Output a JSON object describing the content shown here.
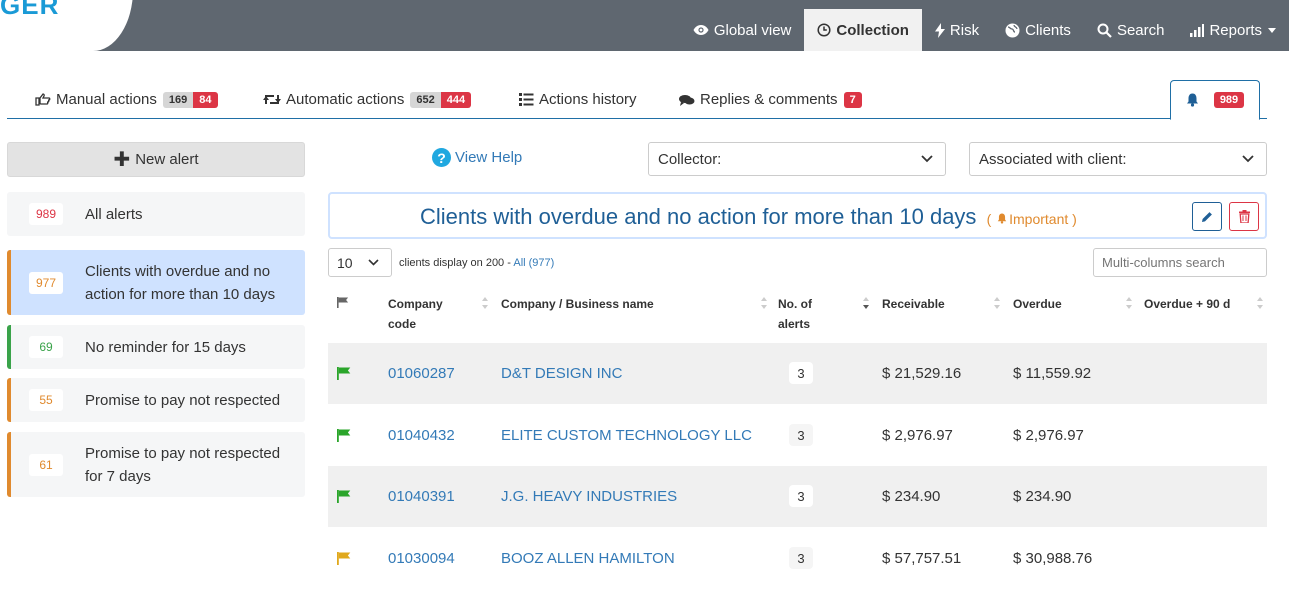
{
  "app": {
    "logo_text": "GER"
  },
  "nav": {
    "items": [
      {
        "label": "Global view",
        "icon": "eye-icon"
      },
      {
        "label": "Collection",
        "icon": "clock-icon",
        "active": true
      },
      {
        "label": "Risk",
        "icon": "bolt-icon"
      },
      {
        "label": "Clients",
        "icon": "globe-icon"
      },
      {
        "label": "Search",
        "icon": "search-icon"
      },
      {
        "label": "Reports",
        "icon": "bar-chart-icon"
      }
    ]
  },
  "tabs": {
    "manual": {
      "label": "Manual actions",
      "count_gray": "169",
      "count_red": "84"
    },
    "automatic": {
      "label": "Automatic actions",
      "count_gray": "652",
      "count_red": "444"
    },
    "history": {
      "label": "Actions history"
    },
    "replies": {
      "label": "Replies & comments",
      "count_red": "7"
    },
    "bell": {
      "count_red": "989"
    }
  },
  "sidebar": {
    "new_alert_label": "New alert",
    "items": [
      {
        "count": "989",
        "label": "All alerts",
        "count_color": "#dc3545"
      },
      {
        "count": "977",
        "label": "Clients with overdue and no action for more than 10 days",
        "count_color": "#e08a2e"
      },
      {
        "count": "69",
        "label": "No reminder for 15 days",
        "count_color": "#3aa34a"
      },
      {
        "count": "55",
        "label": "Promise to pay not respected",
        "count_color": "#e08a2e"
      },
      {
        "count": "61",
        "label": "Promise to pay not respected for 7 days",
        "count_color": "#e08a2e"
      }
    ]
  },
  "filters": {
    "help_label": "View Help",
    "collector_label": "Collector:",
    "client_label": "Associated with client:"
  },
  "alert": {
    "title": "Clients with overdue and no action for more than 10 days",
    "importance": "( Important )"
  },
  "table_controls": {
    "page_size": "10",
    "display_text": "clients display on 200 - ",
    "all_link": "All (977)",
    "search_placeholder": "Multi-columns search"
  },
  "table": {
    "columns": {
      "code": "Company code",
      "name": "Company / Business name",
      "alerts": "No. of alerts",
      "receivable": "Receivable",
      "overdue": "Overdue",
      "overdue90": "Overdue + 90 d"
    },
    "rows": [
      {
        "flag_color": "#2aa52a",
        "code": "01060287",
        "name": "D&T DESIGN INC",
        "alerts": "3",
        "receivable": "$ 21,529.16",
        "overdue": "$ 11,559.92",
        "overdue90": ""
      },
      {
        "flag_color": "#2aa52a",
        "code": "01040432",
        "name": "ELITE CUSTOM TECHNOLOGY LLC",
        "alerts": "3",
        "receivable": "$ 2,976.97",
        "overdue": "$ 2,976.97",
        "overdue90": ""
      },
      {
        "flag_color": "#2aa52a",
        "code": "01040391",
        "name": "J.G. HEAVY INDUSTRIES",
        "alerts": "3",
        "receivable": "$ 234.90",
        "overdue": "$ 234.90",
        "overdue90": ""
      },
      {
        "flag_color": "#e0a81c",
        "code": "01030094",
        "name": "BOOZ ALLEN HAMILTON",
        "alerts": "3",
        "receivable": "$ 57,757.51",
        "overdue": "$ 30,988.76",
        "overdue90": ""
      }
    ]
  },
  "colors": {
    "accent": "#1f5f96",
    "danger": "#dc3545",
    "warning": "#e08a2e",
    "success": "#3aa34a",
    "nav_bg": "#5f6770"
  }
}
